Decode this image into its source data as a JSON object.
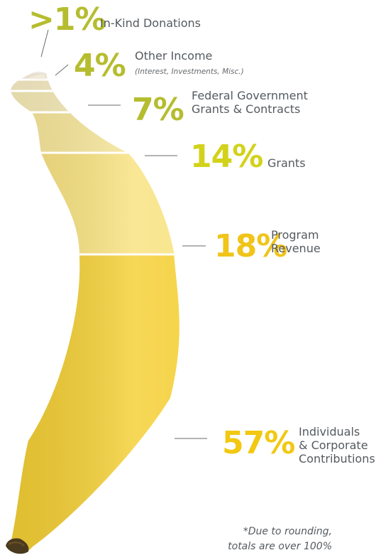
{
  "chart_data": {
    "type": "bar",
    "style": "pictorial stacked banana",
    "categories": [
      "In-Kind Donations",
      "Other Income",
      "Federal Government Grants & Contracts",
      "Grants",
      "Program Revenue",
      "Individuals & Corporate Contributions"
    ],
    "values": [
      1,
      4,
      7,
      14,
      18,
      57
    ],
    "value_labels": [
      ">1%",
      "4%",
      "7%",
      "14%",
      "18%",
      "57%"
    ],
    "label_lines": [
      [
        "In-Kind Donations"
      ],
      [
        "Other Income"
      ],
      [
        "Federal Government",
        "Grants & Contracts"
      ],
      [
        "Grants"
      ],
      [
        "Program",
        "Revenue"
      ],
      [
        "Individuals",
        "& Corporate",
        "Contributions"
      ]
    ],
    "sublabels": [
      "",
      "(Interest, Investments, Misc.)",
      "",
      "",
      "",
      ""
    ],
    "colors": [
      "#b5bd2f",
      "#b5bd2f",
      "#b5bd2f",
      "#d2d21b",
      "#f0c419",
      "#f2c811"
    ],
    "segment_colors": [
      "#fbf3de",
      "#f8edc4",
      "#f7ecb8",
      "#f8e79a",
      "#f8e27f",
      "#f4cf33"
    ],
    "footnote": [
      "*Due to rounding,",
      "totals are over 100%"
    ]
  }
}
